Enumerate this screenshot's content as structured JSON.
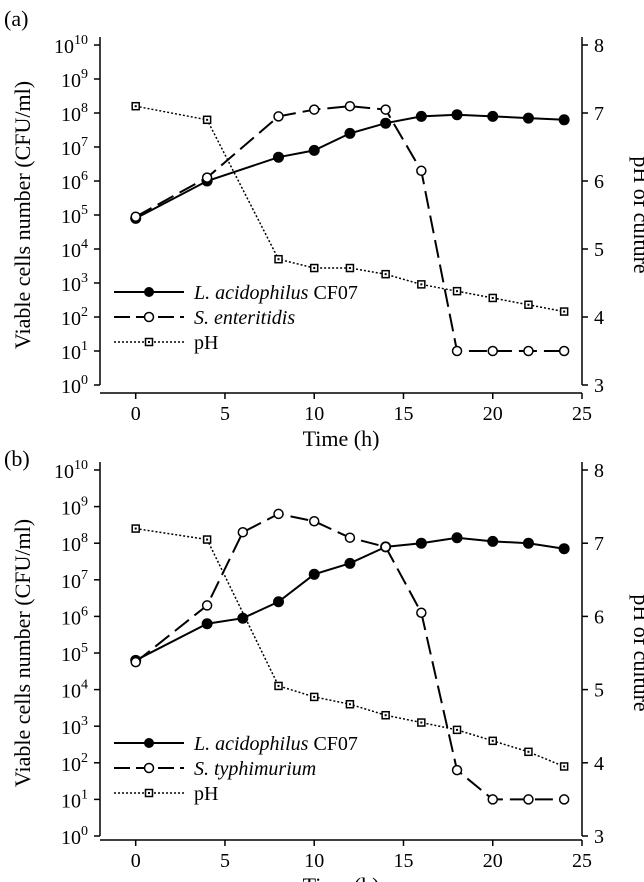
{
  "chart_data": [
    {
      "panel_label": "(a)",
      "type": "line",
      "xlabel": "Time (h)",
      "ylabel_left": "Viable cells number (CFU/ml)",
      "ylabel_right": "pH of culture",
      "x_ticks": [
        "0",
        "5",
        "10",
        "15",
        "20",
        "25"
      ],
      "xlim": [
        -2,
        25
      ],
      "y_left_scale": "log",
      "y_left_ticks": [
        {
          "base": "10",
          "exp": "0"
        },
        {
          "base": "10",
          "exp": "1"
        },
        {
          "base": "10",
          "exp": "2"
        },
        {
          "base": "10",
          "exp": "3"
        },
        {
          "base": "10",
          "exp": "4"
        },
        {
          "base": "10",
          "exp": "5"
        },
        {
          "base": "10",
          "exp": "6"
        },
        {
          "base": "10",
          "exp": "7"
        },
        {
          "base": "10",
          "exp": "8"
        },
        {
          "base": "10",
          "exp": "9"
        },
        {
          "base": "10",
          "exp": "10"
        }
      ],
      "y_left_lim_log10": [
        0,
        10
      ],
      "y_right_ticks": [
        "3",
        "4",
        "5",
        "6",
        "7",
        "8"
      ],
      "y_right_lim": [
        3,
        8
      ],
      "legend_position": "bottom-left",
      "series": [
        {
          "name_italic": "L. acidophilus",
          "name_suffix": " CF07",
          "marker": "filled-circle",
          "line": "solid",
          "axis": "left",
          "x": [
            0,
            4,
            8,
            10,
            12,
            14,
            16,
            18,
            20,
            22,
            24
          ],
          "log10_y": [
            4.9,
            6.0,
            6.7,
            6.9,
            7.4,
            7.7,
            7.9,
            7.95,
            7.9,
            7.85,
            7.8
          ]
        },
        {
          "name_italic": "S. enteritidis",
          "name_suffix": "",
          "marker": "open-circle",
          "line": "dashed",
          "axis": "left",
          "x": [
            0,
            4,
            8,
            10,
            12,
            14,
            16,
            18,
            20,
            22,
            24
          ],
          "log10_y": [
            4.95,
            6.1,
            7.9,
            8.1,
            8.2,
            8.1,
            6.3,
            1.0,
            1.0,
            1.0,
            1.0
          ]
        },
        {
          "name_italic": "",
          "name_suffix": "pH",
          "marker": "open-square",
          "line": "dotted",
          "axis": "right",
          "x": [
            0,
            4,
            8,
            10,
            12,
            14,
            16,
            18,
            20,
            22,
            24
          ],
          "y": [
            7.1,
            6.9,
            4.85,
            4.72,
            4.72,
            4.63,
            4.48,
            4.38,
            4.28,
            4.18,
            4.08
          ]
        }
      ]
    },
    {
      "panel_label": "(b)",
      "type": "line",
      "xlabel": "Time (h)",
      "ylabel_left": "Viable cells number (CFU/ml)",
      "ylabel_right": "pH of culture",
      "x_ticks": [
        "0",
        "5",
        "10",
        "15",
        "20",
        "25"
      ],
      "xlim": [
        -2,
        25
      ],
      "y_left_scale": "log",
      "y_left_ticks": [
        {
          "base": "10",
          "exp": "0"
        },
        {
          "base": "10",
          "exp": "1"
        },
        {
          "base": "10",
          "exp": "2"
        },
        {
          "base": "10",
          "exp": "3"
        },
        {
          "base": "10",
          "exp": "4"
        },
        {
          "base": "10",
          "exp": "5"
        },
        {
          "base": "10",
          "exp": "6"
        },
        {
          "base": "10",
          "exp": "7"
        },
        {
          "base": "10",
          "exp": "8"
        },
        {
          "base": "10",
          "exp": "9"
        },
        {
          "base": "10",
          "exp": "10"
        }
      ],
      "y_left_lim_log10": [
        0,
        10
      ],
      "y_right_ticks": [
        "3",
        "4",
        "5",
        "6",
        "7",
        "8"
      ],
      "y_right_lim": [
        3,
        8
      ],
      "legend_position": "bottom-left",
      "series": [
        {
          "name_italic": "L. acidophilus",
          "name_suffix": " CF07",
          "marker": "filled-circle",
          "line": "solid",
          "axis": "left",
          "x": [
            0,
            4,
            6,
            8,
            10,
            12,
            14,
            16,
            18,
            20,
            22,
            24
          ],
          "log10_y": [
            4.8,
            5.8,
            5.95,
            6.4,
            7.15,
            7.45,
            7.9,
            8.0,
            8.15,
            8.05,
            8.0,
            7.85
          ]
        },
        {
          "name_italic": "S. typhimurium",
          "name_suffix": "",
          "marker": "open-circle",
          "line": "dashed",
          "axis": "left",
          "x": [
            0,
            4,
            6,
            8,
            10,
            12,
            14,
            16,
            18,
            20,
            22,
            24
          ],
          "log10_y": [
            4.75,
            6.3,
            8.3,
            8.8,
            8.6,
            8.15,
            7.9,
            6.1,
            1.8,
            1.0,
            1.0,
            1.0
          ]
        },
        {
          "name_italic": "",
          "name_suffix": "pH",
          "marker": "open-square",
          "line": "dotted",
          "axis": "right",
          "x": [
            0,
            4,
            8,
            10,
            12,
            14,
            16,
            18,
            20,
            22,
            24
          ],
          "y": [
            7.2,
            7.05,
            5.05,
            4.9,
            4.8,
            4.65,
            4.55,
            4.45,
            4.3,
            4.15,
            3.95
          ]
        }
      ]
    }
  ]
}
